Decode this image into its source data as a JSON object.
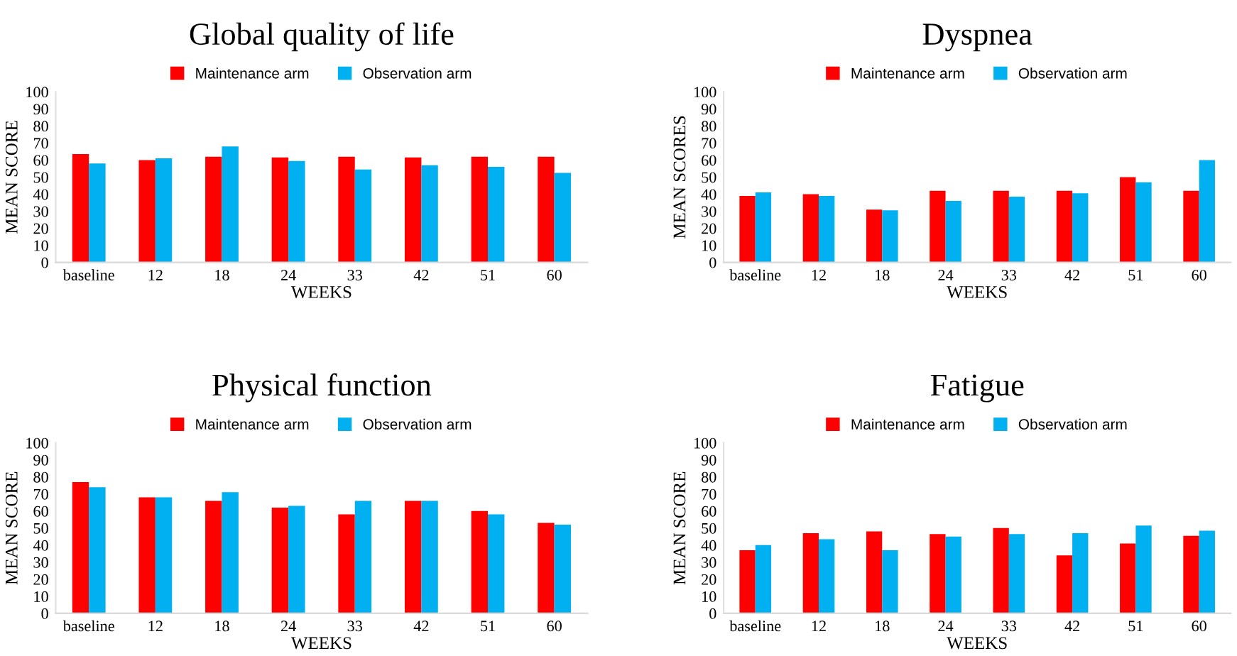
{
  "chart_data": [
    {
      "type": "bar",
      "title": "Global quality of life",
      "xlabel": "WEEKS",
      "ylabel": "MEAN SCORE",
      "categories": [
        "baseline",
        "12",
        "18",
        "24",
        "33",
        "42",
        "51",
        "60"
      ],
      "ylim": [
        0,
        100
      ],
      "yticks": [
        0,
        10,
        20,
        30,
        40,
        50,
        60,
        70,
        80,
        90,
        100
      ],
      "legend": "top",
      "grid": false,
      "series": [
        {
          "name": "Maintenance arm",
          "color": "#ff0000",
          "values": [
            63.5,
            60,
            62,
            61.5,
            62,
            61.5,
            62,
            62
          ]
        },
        {
          "name": "Observation arm",
          "color": "#00b0f0",
          "values": [
            58,
            61,
            68,
            59.5,
            54.5,
            57,
            56,
            52.5
          ]
        }
      ]
    },
    {
      "type": "bar",
      "title": "Dyspnea",
      "xlabel": "WEEKS",
      "ylabel": "MEAN SCORES",
      "categories": [
        "baseline",
        "12",
        "18",
        "24",
        "33",
        "42",
        "51",
        "60"
      ],
      "ylim": [
        0,
        100
      ],
      "yticks": [
        0,
        10,
        20,
        30,
        40,
        50,
        60,
        70,
        80,
        90,
        100
      ],
      "legend": "top",
      "grid": false,
      "series": [
        {
          "name": "Maintenance arm",
          "color": "#ff0000",
          "values": [
            39,
            40,
            31,
            42,
            42,
            42,
            50,
            42
          ]
        },
        {
          "name": "Observation arm",
          "color": "#00b0f0",
          "values": [
            41,
            39,
            30.5,
            36,
            38.5,
            40.5,
            47,
            60
          ]
        }
      ]
    },
    {
      "type": "bar",
      "title": "Physical function",
      "xlabel": "WEEKS",
      "ylabel": "MEAN SCORE",
      "categories": [
        "baseline",
        "12",
        "18",
        "24",
        "33",
        "42",
        "51",
        "60"
      ],
      "ylim": [
        0,
        100
      ],
      "yticks": [
        0,
        10,
        20,
        30,
        40,
        50,
        60,
        70,
        80,
        90,
        100
      ],
      "legend": "top",
      "grid": false,
      "series": [
        {
          "name": "Maintenance arm",
          "color": "#ff0000",
          "values": [
            77,
            68,
            66,
            62,
            58,
            66,
            60,
            53
          ]
        },
        {
          "name": "Observation arm",
          "color": "#00b0f0",
          "values": [
            74,
            68,
            71,
            63,
            66,
            66,
            58,
            52
          ]
        }
      ]
    },
    {
      "type": "bar",
      "title": "Fatigue",
      "xlabel": "WEEKS",
      "ylabel": "MEAN SCORE",
      "categories": [
        "baseline",
        "12",
        "18",
        "24",
        "33",
        "42",
        "51",
        "60"
      ],
      "ylim": [
        0,
        100
      ],
      "yticks": [
        0,
        10,
        20,
        30,
        40,
        50,
        60,
        70,
        80,
        90,
        100
      ],
      "legend": "top",
      "grid": false,
      "series": [
        {
          "name": "Maintenance arm",
          "color": "#ff0000",
          "values": [
            37,
            47,
            48,
            46.5,
            50,
            34,
            41,
            45.5
          ]
        },
        {
          "name": "Observation arm",
          "color": "#00b0f0",
          "values": [
            40,
            43.5,
            37,
            45,
            46.5,
            47,
            51.5,
            48.5
          ]
        }
      ]
    }
  ]
}
